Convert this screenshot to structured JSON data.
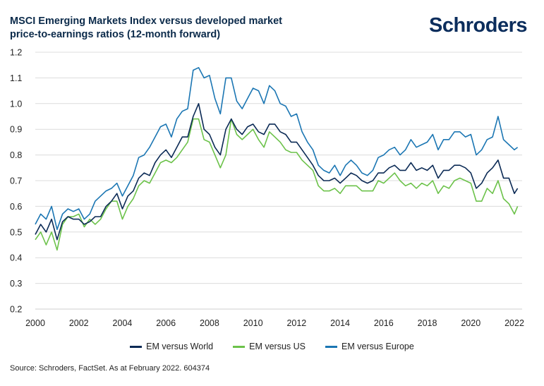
{
  "header": {
    "title_line1": "MSCI Emerging Markets Index versus developed market",
    "title_line2": "price-to-earnings ratios (12-month forward)",
    "brand": "Schroders"
  },
  "footer": {
    "source": "Source: Schroders, FactSet. As at February 2022. 604374"
  },
  "colors": {
    "world": "#0b2a55",
    "us": "#6cc24a",
    "europe": "#1b76b3",
    "grid": "#dcdcdc"
  },
  "chart_data": {
    "type": "line",
    "title": "MSCI Emerging Markets Index versus developed market price-to-earnings ratios (12-month forward)",
    "xlabel": "",
    "ylabel": "",
    "xlim": [
      2000,
      2022.2
    ],
    "ylim": [
      0.2,
      1.2
    ],
    "grid": true,
    "legend_position": "bottom",
    "x_ticks": [
      "2000",
      "2002",
      "2004",
      "2006",
      "2008",
      "2010",
      "2012",
      "2014",
      "2016",
      "2018",
      "2020",
      "2022"
    ],
    "y_ticks": [
      "1.2",
      "1.1",
      "1.0",
      "0.9",
      "0.8",
      "0.7",
      "0.6",
      "0.5",
      "0.4",
      "0.3",
      "0.2"
    ],
    "x": [
      2000.0,
      2000.25,
      2000.5,
      2000.75,
      2001.0,
      2001.25,
      2001.5,
      2001.75,
      2002.0,
      2002.25,
      2002.5,
      2002.75,
      2003.0,
      2003.25,
      2003.5,
      2003.75,
      2004.0,
      2004.25,
      2004.5,
      2004.75,
      2005.0,
      2005.25,
      2005.5,
      2005.75,
      2006.0,
      2006.25,
      2006.5,
      2006.75,
      2007.0,
      2007.25,
      2007.5,
      2007.75,
      2008.0,
      2008.25,
      2008.5,
      2008.75,
      2009.0,
      2009.25,
      2009.5,
      2009.75,
      2010.0,
      2010.25,
      2010.5,
      2010.75,
      2011.0,
      2011.25,
      2011.5,
      2011.75,
      2012.0,
      2012.25,
      2012.5,
      2012.75,
      2013.0,
      2013.25,
      2013.5,
      2013.75,
      2014.0,
      2014.25,
      2014.5,
      2014.75,
      2015.0,
      2015.25,
      2015.5,
      2015.75,
      2016.0,
      2016.25,
      2016.5,
      2016.75,
      2017.0,
      2017.25,
      2017.5,
      2017.75,
      2018.0,
      2018.25,
      2018.5,
      2018.75,
      2019.0,
      2019.25,
      2019.5,
      2019.75,
      2020.0,
      2020.25,
      2020.5,
      2020.75,
      2021.0,
      2021.25,
      2021.5,
      2021.75,
      2022.0,
      2022.15
    ],
    "series": [
      {
        "name": "EM versus World",
        "values": [
          0.49,
          0.53,
          0.5,
          0.55,
          0.47,
          0.54,
          0.56,
          0.55,
          0.55,
          0.53,
          0.54,
          0.56,
          0.56,
          0.6,
          0.62,
          0.65,
          0.59,
          0.64,
          0.66,
          0.71,
          0.73,
          0.72,
          0.77,
          0.8,
          0.82,
          0.79,
          0.83,
          0.87,
          0.87,
          0.95,
          1.0,
          0.9,
          0.88,
          0.83,
          0.8,
          0.9,
          0.94,
          0.9,
          0.88,
          0.91,
          0.92,
          0.89,
          0.88,
          0.92,
          0.92,
          0.89,
          0.88,
          0.85,
          0.85,
          0.82,
          0.79,
          0.76,
          0.72,
          0.7,
          0.7,
          0.71,
          0.69,
          0.71,
          0.73,
          0.72,
          0.7,
          0.69,
          0.7,
          0.73,
          0.73,
          0.75,
          0.76,
          0.74,
          0.74,
          0.77,
          0.74,
          0.75,
          0.74,
          0.76,
          0.71,
          0.74,
          0.74,
          0.76,
          0.76,
          0.75,
          0.73,
          0.67,
          0.69,
          0.73,
          0.75,
          0.78,
          0.71,
          0.71,
          0.65,
          0.67
        ]
      },
      {
        "name": "EM versus US",
        "values": [
          0.47,
          0.5,
          0.45,
          0.5,
          0.43,
          0.53,
          0.56,
          0.56,
          0.57,
          0.52,
          0.55,
          0.53,
          0.55,
          0.59,
          0.62,
          0.62,
          0.55,
          0.6,
          0.63,
          0.68,
          0.7,
          0.69,
          0.73,
          0.77,
          0.78,
          0.77,
          0.79,
          0.82,
          0.85,
          0.94,
          0.94,
          0.86,
          0.85,
          0.8,
          0.75,
          0.8,
          0.94,
          0.88,
          0.86,
          0.88,
          0.9,
          0.86,
          0.83,
          0.89,
          0.87,
          0.85,
          0.82,
          0.81,
          0.81,
          0.78,
          0.76,
          0.74,
          0.68,
          0.66,
          0.66,
          0.67,
          0.65,
          0.68,
          0.68,
          0.68,
          0.66,
          0.66,
          0.66,
          0.7,
          0.69,
          0.71,
          0.73,
          0.7,
          0.68,
          0.69,
          0.67,
          0.69,
          0.68,
          0.7,
          0.65,
          0.68,
          0.67,
          0.7,
          0.71,
          0.7,
          0.69,
          0.62,
          0.62,
          0.67,
          0.65,
          0.7,
          0.63,
          0.61,
          0.57,
          0.6
        ]
      },
      {
        "name": "EM versus Europe",
        "values": [
          0.53,
          0.57,
          0.55,
          0.6,
          0.51,
          0.57,
          0.59,
          0.58,
          0.59,
          0.55,
          0.57,
          0.62,
          0.64,
          0.66,
          0.67,
          0.69,
          0.64,
          0.68,
          0.72,
          0.79,
          0.8,
          0.83,
          0.87,
          0.91,
          0.92,
          0.87,
          0.94,
          0.97,
          0.98,
          1.13,
          1.14,
          1.1,
          1.11,
          1.02,
          0.96,
          1.1,
          1.1,
          1.01,
          0.98,
          1.02,
          1.06,
          1.05,
          1.0,
          1.07,
          1.05,
          1.0,
          0.99,
          0.95,
          0.96,
          0.89,
          0.85,
          0.82,
          0.76,
          0.74,
          0.73,
          0.76,
          0.72,
          0.76,
          0.78,
          0.76,
          0.73,
          0.72,
          0.74,
          0.79,
          0.8,
          0.82,
          0.83,
          0.8,
          0.82,
          0.86,
          0.83,
          0.84,
          0.85,
          0.88,
          0.82,
          0.86,
          0.86,
          0.89,
          0.89,
          0.87,
          0.88,
          0.8,
          0.82,
          0.86,
          0.87,
          0.95,
          0.86,
          0.84,
          0.82,
          0.83
        ]
      }
    ]
  }
}
